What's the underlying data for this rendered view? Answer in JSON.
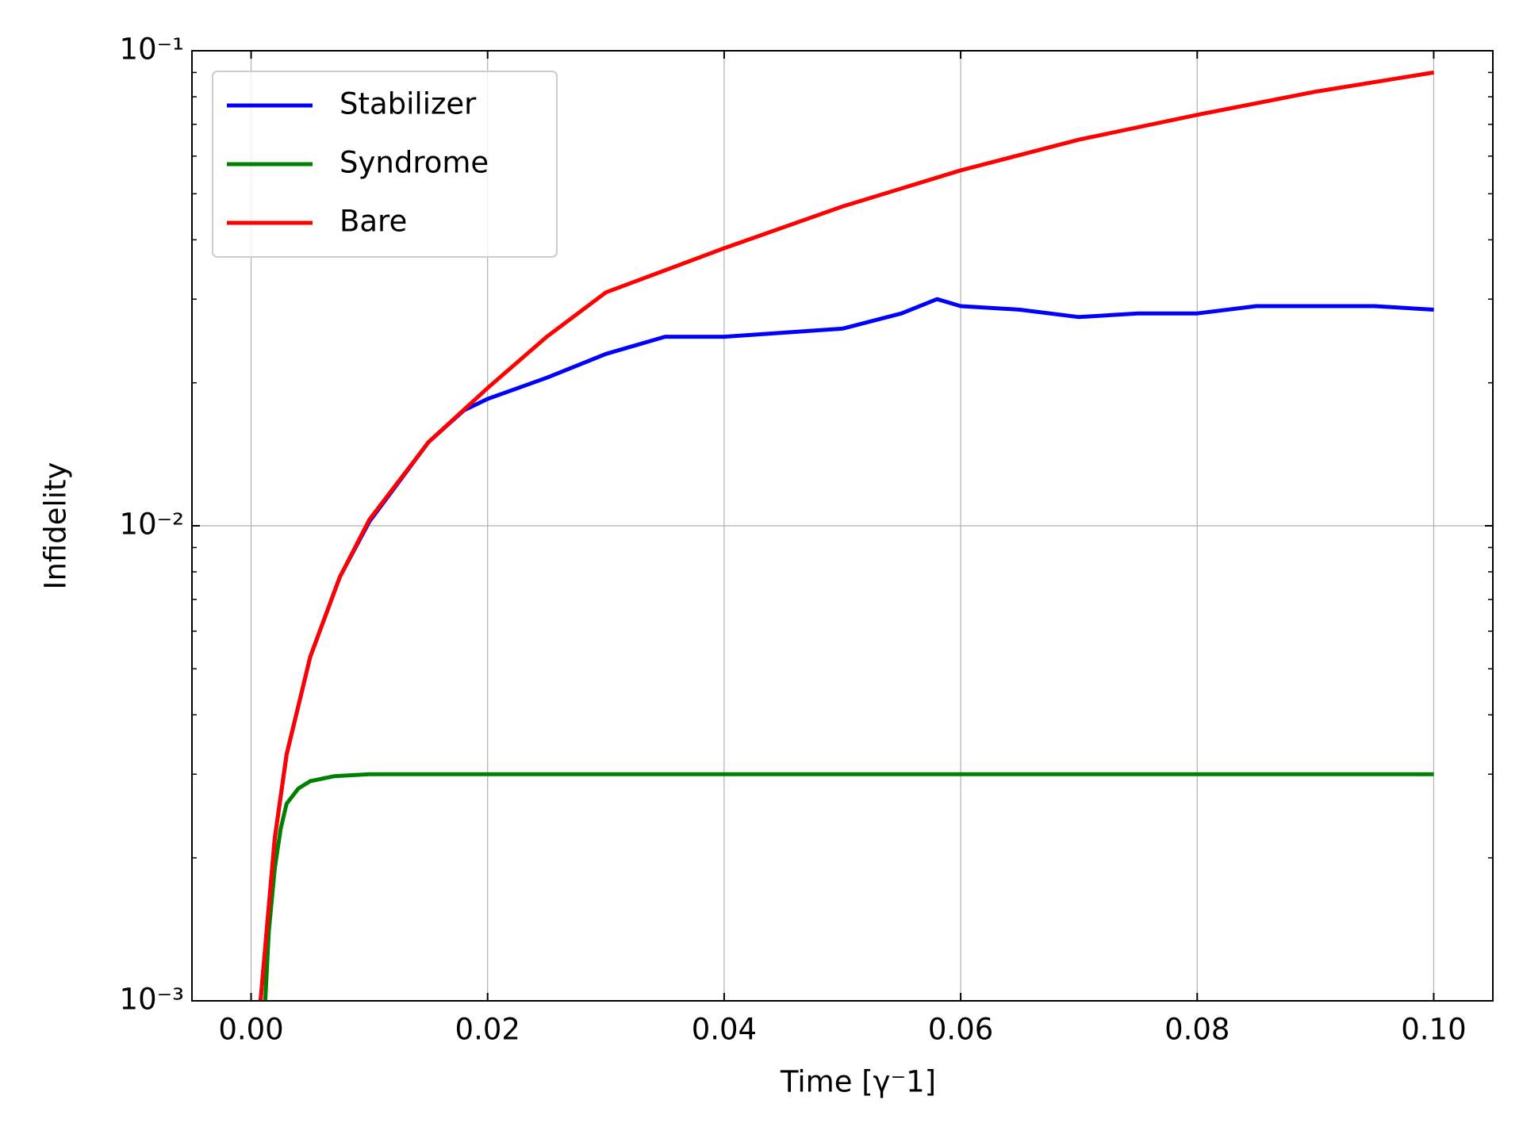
{
  "chart_data": {
    "type": "line",
    "xlabel": "Time [γ⁻1]",
    "ylabel": "Infidelity",
    "xlim": [
      -0.005,
      0.105
    ],
    "ylim": [
      0.001,
      0.1
    ],
    "yscale": "log",
    "xticks": [
      {
        "value": 0,
        "label": "0.00"
      },
      {
        "value": 0.02,
        "label": "0.02"
      },
      {
        "value": 0.04,
        "label": "0.04"
      },
      {
        "value": 0.06,
        "label": "0.06"
      },
      {
        "value": 0.08,
        "label": "0.08"
      },
      {
        "value": 0.1,
        "label": "0.10"
      }
    ],
    "yticks": [
      {
        "value": 0.001,
        "label": "10⁻³"
      },
      {
        "value": 0.01,
        "label": "10⁻²"
      },
      {
        "value": 0.1,
        "label": "10⁻¹"
      }
    ],
    "yminorticks": [
      0.002,
      0.003,
      0.004,
      0.005,
      0.006,
      0.007,
      0.008,
      0.009,
      0.02,
      0.03,
      0.04,
      0.05,
      0.06,
      0.07,
      0.08,
      0.09
    ],
    "grid": true,
    "legend": "upper left",
    "series": [
      {
        "name": "Stabilizer",
        "color": "#0000ff",
        "x": [
          0.0008,
          0.002,
          0.003,
          0.005,
          0.0075,
          0.01,
          0.015,
          0.018,
          0.02,
          0.025,
          0.03,
          0.035,
          0.04,
          0.045,
          0.05,
          0.055,
          0.058,
          0.06,
          0.065,
          0.07,
          0.075,
          0.08,
          0.085,
          0.09,
          0.095,
          0.1
        ],
        "values": [
          0.001,
          0.0022,
          0.0033,
          0.0053,
          0.0078,
          0.0102,
          0.015,
          0.0175,
          0.0185,
          0.0205,
          0.023,
          0.025,
          0.025,
          0.0255,
          0.026,
          0.028,
          0.03,
          0.029,
          0.0285,
          0.0275,
          0.028,
          0.028,
          0.029,
          0.029,
          0.029,
          0.0285
        ]
      },
      {
        "name": "Syndrome",
        "color": "#008000",
        "x": [
          0.0012,
          0.0015,
          0.002,
          0.0025,
          0.003,
          0.004,
          0.005,
          0.007,
          0.01,
          0.02,
          0.05,
          0.1
        ],
        "values": [
          0.001,
          0.0014,
          0.0019,
          0.0023,
          0.0026,
          0.0028,
          0.0029,
          0.00297,
          0.003,
          0.003,
          0.003,
          0.003
        ]
      },
      {
        "name": "Bare",
        "color": "#ff0000",
        "x": [
          0.0008,
          0.002,
          0.003,
          0.005,
          0.0075,
          0.01,
          0.015,
          0.02,
          0.025,
          0.03,
          0.04,
          0.05,
          0.06,
          0.07,
          0.08,
          0.09,
          0.1
        ],
        "values": [
          0.001,
          0.0022,
          0.0033,
          0.0053,
          0.0078,
          0.0103,
          0.015,
          0.0195,
          0.025,
          0.031,
          0.0384,
          0.047,
          0.056,
          0.065,
          0.0733,
          0.082,
          0.09
        ]
      }
    ]
  }
}
